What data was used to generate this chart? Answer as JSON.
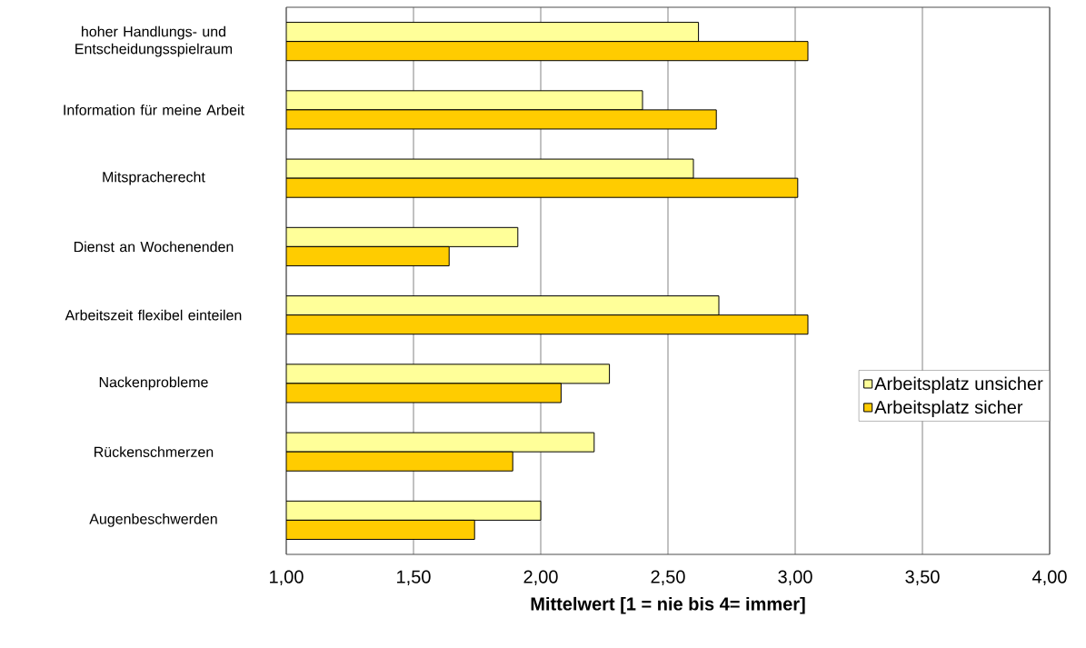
{
  "chart_data": {
    "type": "bar",
    "orientation": "horizontal",
    "xlabel": "Mittelwert [1 = nie bis 4= immer]",
    "categories": [
      "hoher Handlungs- und Entscheidungsspielraum",
      "Information für meine Arbeit",
      "Mitspracherecht",
      "Dienst an Wochenenden",
      "Arbeitszeit flexibel einteilen",
      "Nackenprobleme",
      "Rückenschmerzen",
      "Augenbeschwerden"
    ],
    "series": [
      {
        "name": "Arbeitsplatz unsicher",
        "color": "#ffff99",
        "values": [
          2.62,
          2.4,
          2.6,
          1.91,
          2.7,
          2.27,
          2.21,
          2.0
        ]
      },
      {
        "name": "Arbeitsplatz sicher",
        "color": "#ffcc00",
        "values": [
          3.05,
          2.69,
          3.01,
          1.64,
          3.05,
          2.08,
          1.89,
          1.74
        ]
      }
    ],
    "xlim": [
      1,
      4
    ],
    "xticks": [
      {
        "value": 1,
        "label": "1,00"
      },
      {
        "value": 1.5,
        "label": "1,50"
      },
      {
        "value": 2,
        "label": "2,00"
      },
      {
        "value": 2.5,
        "label": "2,50"
      },
      {
        "value": 3,
        "label": "3,00"
      },
      {
        "value": 3.5,
        "label": "3,50"
      },
      {
        "value": 4,
        "label": "4,00"
      }
    ],
    "grid": "x",
    "legend": "right"
  }
}
